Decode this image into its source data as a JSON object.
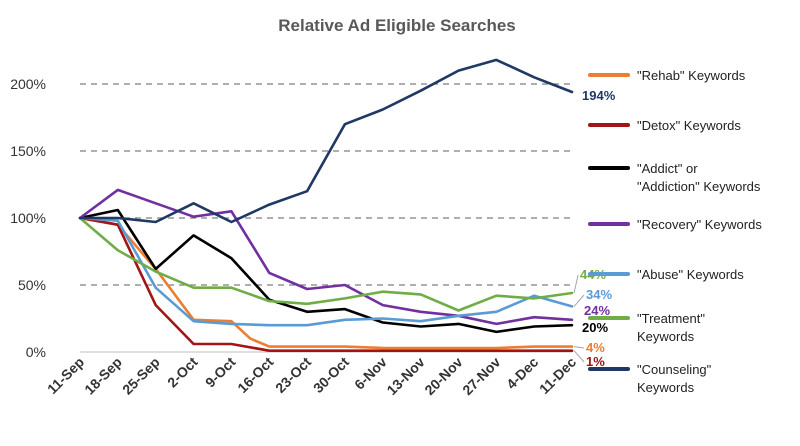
{
  "chart_data": {
    "type": "line",
    "title": "Relative Ad Eligible Searches",
    "xlabel": "",
    "ylabel": "",
    "ylim": [
      0,
      225
    ],
    "yticks": [
      0,
      50,
      100,
      150,
      200
    ],
    "ytick_labels": [
      "0%",
      "50%",
      "100%",
      "150%",
      "200%"
    ],
    "grid": true,
    "legend_position": "right",
    "categories": [
      "11-Sep",
      "18-Sep",
      "25-Sep",
      "2-Oct",
      "9-Oct",
      "16-Oct",
      "23-Oct",
      "30-Oct",
      "6-Nov",
      "13-Nov",
      "20-Nov",
      "27-Nov",
      "4-Dec",
      "11-Dec"
    ],
    "series": [
      {
        "name": "\"Rehab\" Keywords",
        "legend_lines": [
          "\"Rehab\" Keywords"
        ],
        "color": "#ed7d31",
        "x": [
          0,
          1,
          2,
          3,
          4,
          4.5,
          5,
          6,
          7,
          8,
          9,
          10,
          11,
          12,
          13
        ],
        "values": [
          100,
          95,
          62,
          24,
          23,
          10,
          4,
          4,
          4,
          3,
          3,
          3,
          3,
          4,
          4
        ],
        "end_label": "4%"
      },
      {
        "name": "\"Detox\" Keywords",
        "legend_lines": [
          "\"Detox\" Keywords"
        ],
        "color": "#a31515",
        "x": [
          0,
          1,
          2,
          3,
          4,
          5,
          6,
          7,
          8,
          9,
          10,
          11,
          12,
          13
        ],
        "values": [
          100,
          95,
          35,
          6,
          6,
          1,
          1,
          1,
          1,
          1,
          1,
          1,
          1,
          1
        ],
        "end_label": "1%"
      },
      {
        "name": "\"Addict\" or \"Addiction\" Keywords",
        "legend_lines": [
          "\"Addict\" or",
          "\"Addiction\" Keywords"
        ],
        "color": "#000000",
        "x": [
          0,
          1,
          2,
          3,
          4,
          5,
          6,
          7,
          8,
          9,
          10,
          11,
          12,
          13
        ],
        "values": [
          100,
          106,
          62,
          87,
          70,
          39,
          30,
          32,
          22,
          19,
          21,
          15,
          19,
          20
        ],
        "end_label": "20%"
      },
      {
        "name": "\"Recovery\" Keywords",
        "legend_lines": [
          "\"Recovery\" Keywords"
        ],
        "color": "#7030a0",
        "x": [
          0,
          1,
          2,
          3,
          4,
          5,
          6,
          7,
          8,
          9,
          10,
          11,
          12,
          13
        ],
        "values": [
          100,
          121,
          111,
          101,
          105,
          59,
          47,
          50,
          35,
          30,
          27,
          21,
          26,
          24
        ],
        "end_label": "24%"
      },
      {
        "name": "\"Abuse\" Keywords",
        "legend_lines": [
          "\"Abuse\" Keywords"
        ],
        "color": "#5b9bd5",
        "x": [
          0,
          1,
          2,
          3,
          4,
          5,
          6,
          7,
          8,
          9,
          10,
          11,
          12,
          13
        ],
        "values": [
          100,
          98,
          48,
          23,
          21,
          20,
          20,
          24,
          25,
          23,
          27,
          30,
          42,
          34
        ],
        "end_label": "34%"
      },
      {
        "name": "\"Treatment\" Keywords",
        "legend_lines": [
          "\"Treatment\"",
          "Keywords"
        ],
        "color": "#70ad47",
        "x": [
          0,
          1,
          2,
          3,
          4,
          5,
          6,
          7,
          8,
          9,
          10,
          11,
          12,
          13
        ],
        "values": [
          100,
          76,
          60,
          48,
          48,
          38,
          36,
          40,
          45,
          43,
          31,
          42,
          40,
          44
        ],
        "end_label": "44%"
      },
      {
        "name": "\"Counseling\" Keywords",
        "legend_lines": [
          "\"Counseling\"",
          "Keywords"
        ],
        "color": "#203864",
        "x": [
          0,
          1,
          2,
          3,
          4,
          5,
          6,
          7,
          8,
          9,
          10,
          11,
          12,
          13
        ],
        "values": [
          100,
          100,
          97,
          111,
          97,
          110,
          120,
          170,
          181,
          195,
          210,
          218,
          205,
          194
        ],
        "end_label": "194%"
      }
    ]
  }
}
